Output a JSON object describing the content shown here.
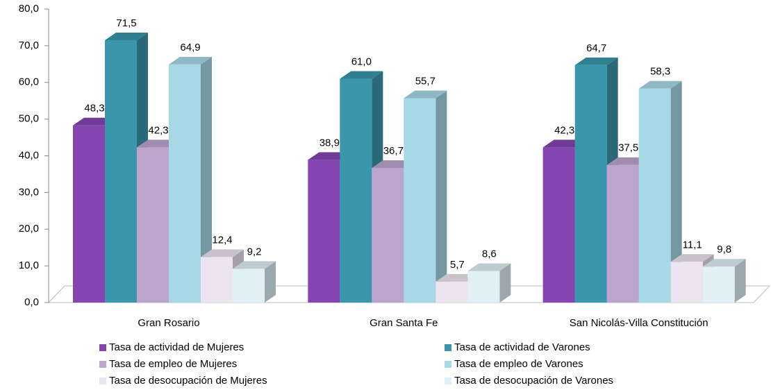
{
  "chart_data": {
    "type": "bar3d",
    "categories": [
      "Gran Rosario",
      "Gran Santa Fe",
      "San Nicolás-Villa Constitución"
    ],
    "series": [
      {
        "name": "Tasa de actividad de Mujeres",
        "color": "#8445b0",
        "values": [
          48.3,
          38.9,
          42.3
        ],
        "value_labels": [
          "48,3",
          "38,9",
          "42,3"
        ]
      },
      {
        "name": "Tasa de actividad de Varones",
        "color": "#3a96ab",
        "values": [
          71.5,
          61.0,
          64.7
        ],
        "value_labels": [
          "71,5",
          "61,0",
          "64,7"
        ]
      },
      {
        "name": "Tasa de empleo de Mujeres",
        "color": "#bba5cd",
        "values": [
          42.3,
          36.7,
          37.5
        ],
        "value_labels": [
          "42,3",
          "36,7",
          "37,5"
        ]
      },
      {
        "name": "Tasa de empleo de Varones",
        "color": "#a6d8e6",
        "values": [
          64.9,
          55.7,
          58.3
        ],
        "value_labels": [
          "64,9",
          "55,7",
          "58,3"
        ]
      },
      {
        "name": "Tasa de desocupación de Mujeres",
        "color": "#ece4f0",
        "values": [
          12.4,
          5.7,
          11.1
        ],
        "value_labels": [
          "12,4",
          "5,7",
          "11,1"
        ]
      },
      {
        "name": "Tasa de desocupación de Varones",
        "color": "#e0f0f6",
        "values": [
          9.2,
          8.6,
          9.8
        ],
        "value_labels": [
          "9,2",
          "8,6",
          "9,8"
        ]
      }
    ],
    "ylim": [
      0,
      80
    ],
    "yticks": [
      {
        "value": 0,
        "label": "0,0"
      },
      {
        "value": 10,
        "label": "10,0"
      },
      {
        "value": 20,
        "label": "20,0"
      },
      {
        "value": 30,
        "label": "30,0"
      },
      {
        "value": 40,
        "label": "40,0"
      },
      {
        "value": 50,
        "label": "50,0"
      },
      {
        "value": 60,
        "label": "60,0"
      },
      {
        "value": 70,
        "label": "70,0"
      },
      {
        "value": 80,
        "label": "80,0"
      }
    ]
  }
}
